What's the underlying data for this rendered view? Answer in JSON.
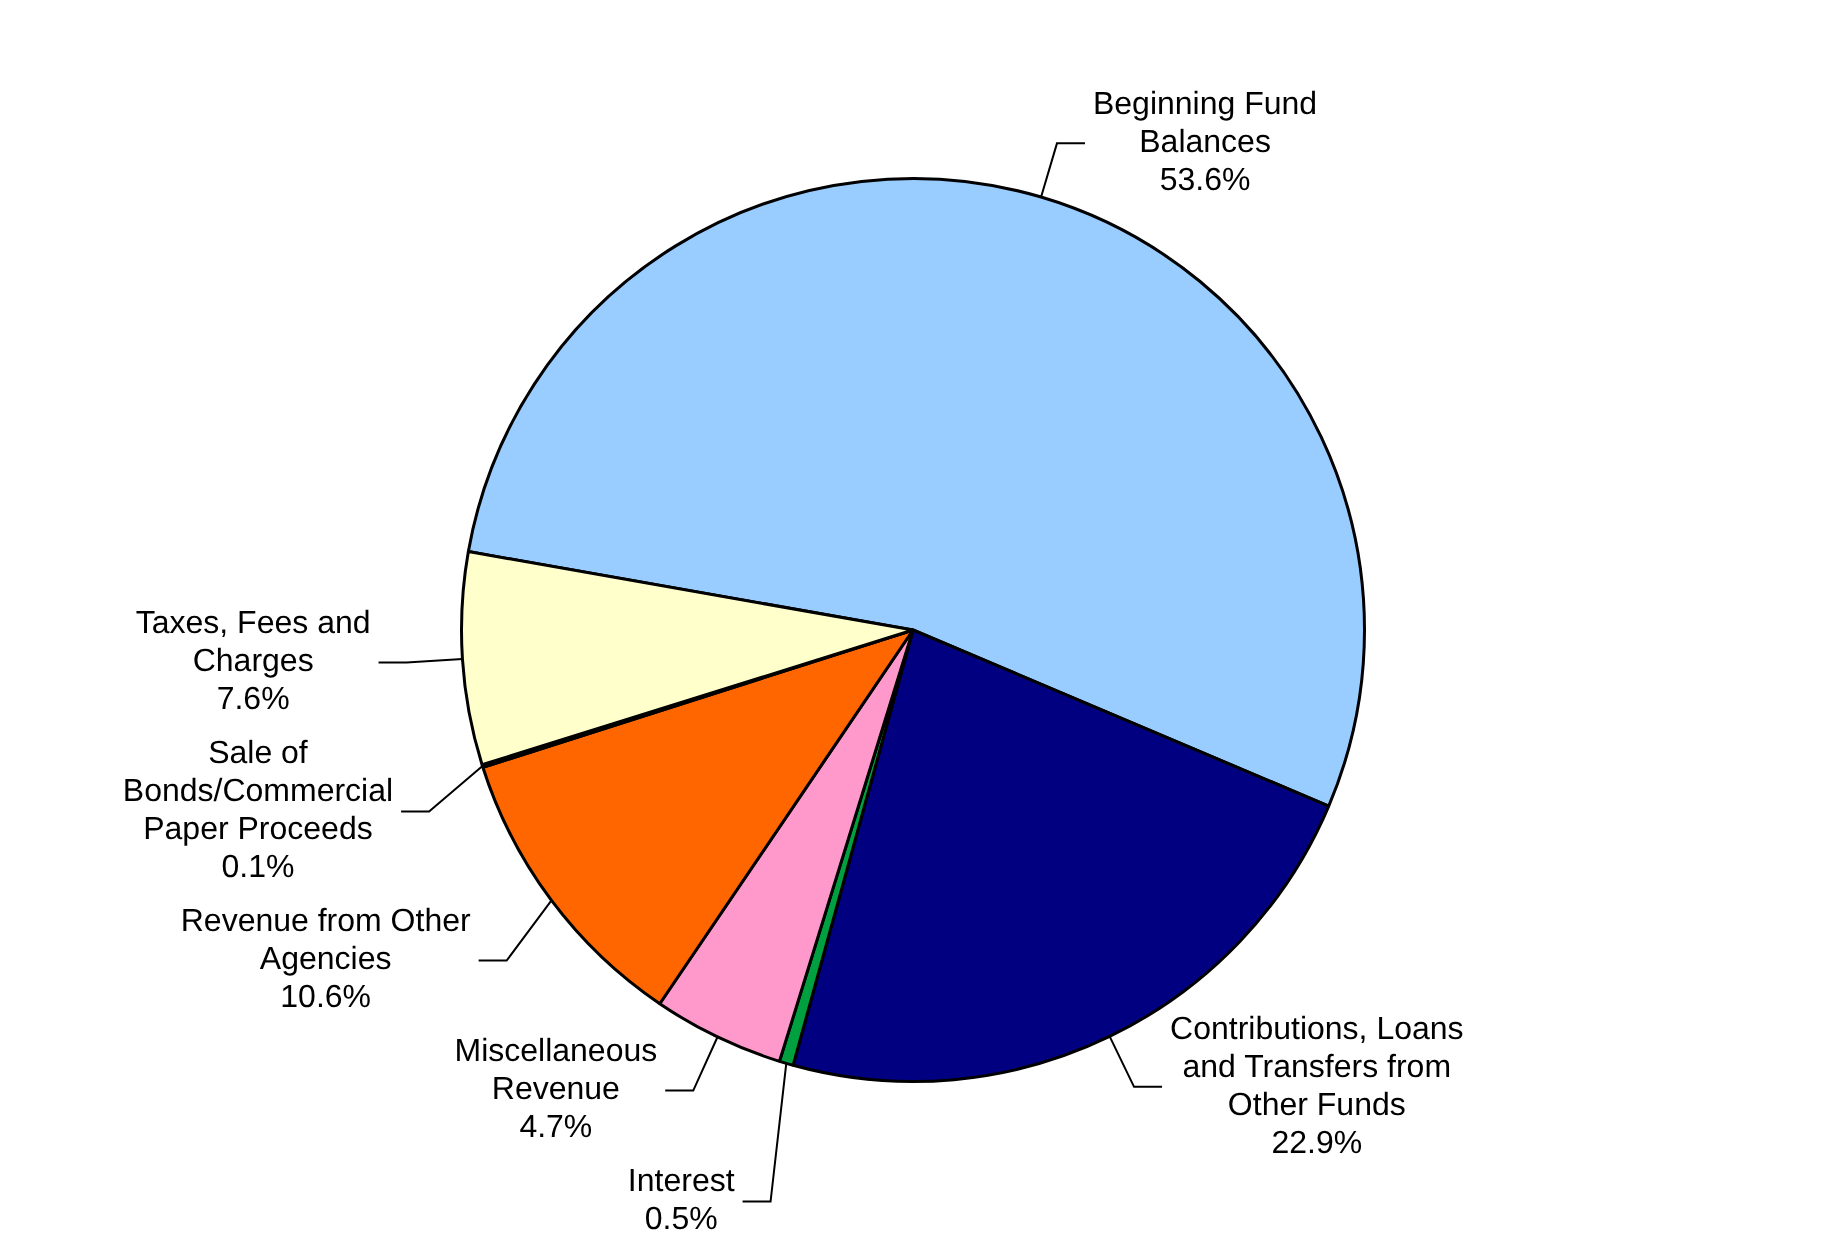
{
  "chart_data": {
    "type": "pie",
    "categories": [
      "Beginning Fund Balances",
      "Contributions, Loans and Transfers from Other Funds",
      "Interest",
      "Miscellaneous Revenue",
      "Revenue from Other Agencies",
      "Sale of Bonds/Commercial Paper Proceeds",
      "Taxes, Fees and Charges"
    ],
    "values": [
      53.6,
      22.9,
      0.5,
      4.7,
      10.6,
      0.1,
      7.6
    ],
    "colors": [
      "#99ccff",
      "#000080",
      "#00a040",
      "#ff99cc",
      "#ff6600",
      "#660066",
      "#ffffcc"
    ],
    "value_labels": [
      "53.6%",
      "22.9%",
      "0.5%",
      "4.7%",
      "10.6%",
      "0.1%",
      "7.6%"
    ]
  }
}
